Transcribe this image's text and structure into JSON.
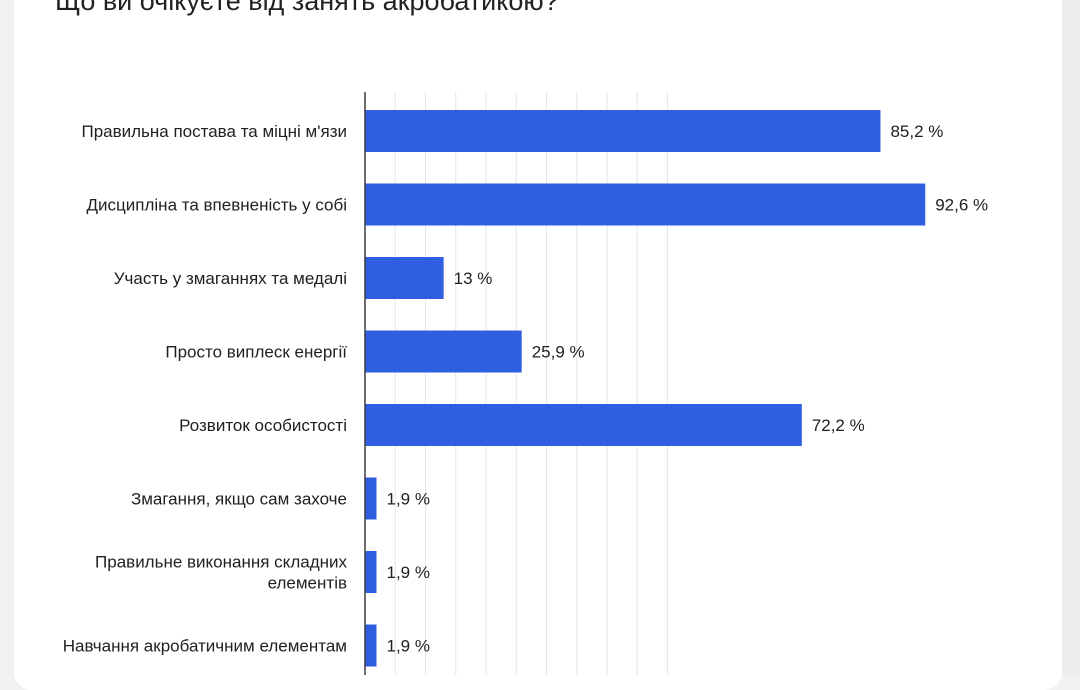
{
  "colors": {
    "bar": "#2f5ee0",
    "grid": "#e6e6ea",
    "axis": "#3c3c3c"
  },
  "chart_data": {
    "type": "bar",
    "orientation": "horizontal",
    "title": "Що ви очікуєте від занять акробатикою?",
    "categories": [
      "Правильна постава та міцні м'язи",
      "Дисципліна та впевненість у собі",
      "Участь у змаганнях та медалі",
      "Просто виплеск енергії",
      "Розвиток особистості",
      "Змагання, якщо сам захоче",
      "Правильне виконання складних елементів",
      "Навчання акробатичним елементам"
    ],
    "category_lines": [
      [
        "Правильна постава та міцні м'язи"
      ],
      [
        "Дисципліна та впевненість у собі"
      ],
      [
        "Участь у змаганнях та медалі"
      ],
      [
        "Просто виплеск енергії"
      ],
      [
        "Розвиток особистості"
      ],
      [
        "Змагання, якщо сам захоче"
      ],
      [
        "Правильне виконання складних",
        "елементів"
      ],
      [
        "Навчання акробатичним елементам"
      ]
    ],
    "values": [
      85.2,
      92.6,
      13,
      25.9,
      72.2,
      1.9,
      1.9,
      1.9
    ],
    "value_labels": [
      "85,2 %",
      "92,6 %",
      "13 %",
      "25,9 %",
      "72,2 %",
      "1,9 %",
      "1,9 %",
      "1,9 %"
    ],
    "xlim": [
      0,
      100
    ],
    "grid": true,
    "legend": "none"
  }
}
